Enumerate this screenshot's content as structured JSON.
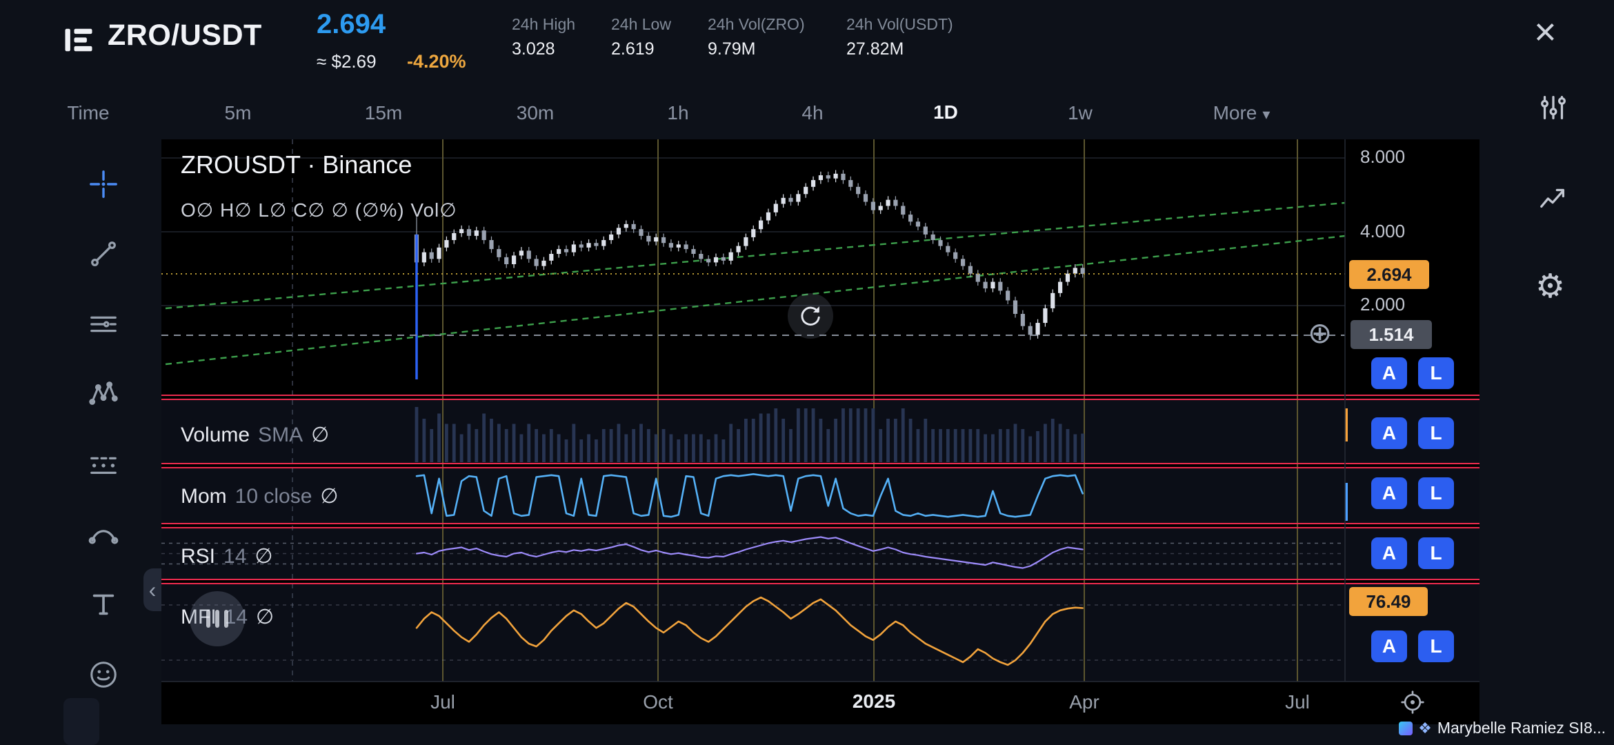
{
  "header": {
    "pair": "ZRO/USDT",
    "price": "2.694",
    "price_usd": "≈ $2.69",
    "change": "-4.20%",
    "stats": [
      {
        "label": "24h High",
        "value": "3.028"
      },
      {
        "label": "24h Low",
        "value": "2.619"
      },
      {
        "label": "24h Vol(ZRO)",
        "value": "9.79M"
      },
      {
        "label": "24h Vol(USDT)",
        "value": "27.82M"
      }
    ]
  },
  "timeframes": {
    "items": [
      "Time",
      "5m",
      "15m",
      "30m",
      "1h",
      "4h",
      "1D",
      "1w"
    ],
    "selected": "1D",
    "more_label": "More"
  },
  "chart": {
    "title": "ZROUSDT · Binance",
    "ohlc_legend": "O∅ H∅ L∅ C∅ ∅ (∅%) Vol∅",
    "panels": [
      {
        "name": "Volume",
        "params": "SMA",
        "value": "∅"
      },
      {
        "name": "Mom",
        "params": "10 close",
        "value": "∅"
      },
      {
        "name": "RSI",
        "params": "14",
        "value": "∅"
      },
      {
        "name": "MFI",
        "params": "14",
        "value": "∅"
      }
    ],
    "price_axis": [
      "8.000",
      "4.000",
      "2.000"
    ],
    "time_axis": [
      "Jul",
      "Oct",
      "2025",
      "Apr",
      "Jul"
    ],
    "badges": {
      "last_price": "2.694",
      "support": "1.514",
      "mfi_value": "76.49"
    },
    "ab_buttons": {
      "a": "A",
      "l": "L"
    }
  },
  "icons": {
    "close": "×",
    "more_caret": "▾",
    "gear": "⚙",
    "plus_circle": "⊕",
    "chevron_collapse": "‹",
    "watermark_diamond": "❖"
  },
  "watermark": {
    "text": "Marybelle Ramiez SI8..."
  },
  "colors": {
    "accent_blue": "#2d9bf0",
    "warn_orange": "#f2a33c",
    "button_blue": "#2c5ef0",
    "separator_red": "#ee2b4e",
    "mom_line": "#55b1f7",
    "rsi_line": "#9e8cfc",
    "mfi_line": "#f2a33c",
    "trend_green": "#3da04c"
  },
  "chart_data": {
    "type": "candlestick+indicators",
    "symbol": "ZROUSDT",
    "interval": "1D",
    "scale": "log",
    "price_gridlines": [
      8.0,
      4.0,
      2.0
    ],
    "last_price": 2.694,
    "level_line": 1.514,
    "mfi_last": 76.49,
    "time_labels": [
      "Jul",
      "Oct",
      "2025",
      "Apr",
      "Jul"
    ],
    "open_first": 3.9,
    "closes": [
      3.0,
      3.3,
      3.1,
      3.45,
      3.7,
      3.95,
      4.1,
      3.85,
      4.05,
      3.7,
      3.4,
      3.15,
      2.95,
      3.2,
      3.35,
      3.1,
      2.9,
      3.05,
      3.25,
      3.4,
      3.3,
      3.55,
      3.45,
      3.6,
      3.5,
      3.7,
      3.9,
      4.15,
      4.3,
      4.1,
      3.85,
      3.65,
      3.8,
      3.6,
      3.45,
      3.55,
      3.4,
      3.25,
      3.1,
      3.0,
      3.15,
      3.05,
      3.3,
      3.5,
      3.8,
      4.1,
      4.45,
      4.8,
      5.2,
      5.5,
      5.3,
      5.7,
      6.1,
      6.5,
      6.8,
      6.6,
      6.9,
      6.5,
      6.1,
      5.7,
      5.3,
      4.9,
      5.1,
      5.4,
      5.1,
      4.7,
      4.4,
      4.2,
      3.9,
      3.7,
      3.5,
      3.3,
      3.1,
      2.9,
      2.7,
      2.5,
      2.35,
      2.5,
      2.3,
      2.1,
      1.85,
      1.65,
      1.52,
      1.7,
      1.95,
      2.25,
      2.5,
      2.7,
      2.85,
      2.694
    ],
    "wick_overrides": {
      "0": {
        "high": 4.6,
        "low": 1.0
      },
      "82": {
        "low": 1.45
      }
    },
    "mom": [
      0.9,
      0.92,
      0.15,
      0.85,
      0.1,
      0.12,
      0.8,
      0.9,
      0.88,
      0.2,
      0.1,
      0.85,
      0.9,
      0.15,
      0.1,
      0.12,
      0.88,
      0.9,
      0.92,
      0.9,
      0.15,
      0.1,
      0.85,
      0.12,
      0.1,
      0.9,
      0.92,
      0.9,
      0.88,
      0.15,
      0.1,
      0.12,
      0.85,
      0.1,
      0.08,
      0.12,
      0.9,
      0.88,
      0.15,
      0.1,
      0.85,
      0.9,
      0.92,
      0.9,
      0.92,
      0.94,
      0.92,
      0.9,
      0.92,
      0.9,
      0.2,
      0.85,
      0.9,
      0.92,
      0.9,
      0.3,
      0.85,
      0.25,
      0.15,
      0.1,
      0.12,
      0.1,
      0.5,
      0.85,
      0.2,
      0.12,
      0.1,
      0.15,
      0.1,
      0.12,
      0.1,
      0.08,
      0.1,
      0.12,
      0.1,
      0.08,
      0.1,
      0.6,
      0.15,
      0.1,
      0.08,
      0.1,
      0.12,
      0.5,
      0.85,
      0.9,
      0.92,
      0.9,
      0.92,
      0.55
    ],
    "rsi": [
      50,
      52,
      48,
      55,
      58,
      60,
      62,
      57,
      60,
      54,
      49,
      46,
      44,
      50,
      52,
      47,
      44,
      48,
      52,
      55,
      53,
      57,
      55,
      58,
      56,
      59,
      62,
      66,
      68,
      63,
      57,
      53,
      56,
      52,
      49,
      51,
      48,
      46,
      43,
      42,
      45,
      44,
      49,
      53,
      58,
      62,
      66,
      70,
      73,
      75,
      72,
      75,
      78,
      80,
      82,
      79,
      81,
      76,
      70,
      65,
      60,
      55,
      58,
      62,
      58,
      52,
      49,
      47,
      44,
      42,
      40,
      38,
      36,
      34,
      32,
      30,
      28,
      33,
      30,
      27,
      24,
      22,
      26,
      34,
      43,
      52,
      58,
      62,
      60,
      58
    ],
    "mfi": [
      55,
      65,
      72,
      68,
      60,
      52,
      45,
      40,
      48,
      58,
      66,
      72,
      65,
      55,
      45,
      38,
      35,
      42,
      52,
      60,
      68,
      74,
      70,
      62,
      55,
      60,
      68,
      76,
      82,
      78,
      70,
      62,
      55,
      50,
      56,
      62,
      58,
      50,
      44,
      40,
      46,
      54,
      62,
      70,
      78,
      84,
      88,
      84,
      78,
      72,
      65,
      70,
      76,
      82,
      86,
      80,
      74,
      66,
      58,
      52,
      46,
      42,
      48,
      56,
      62,
      58,
      50,
      44,
      38,
      34,
      30,
      26,
      22,
      18,
      24,
      32,
      28,
      22,
      18,
      15,
      20,
      28,
      38,
      50,
      62,
      70,
      74,
      76,
      77,
      76.49
    ]
  }
}
